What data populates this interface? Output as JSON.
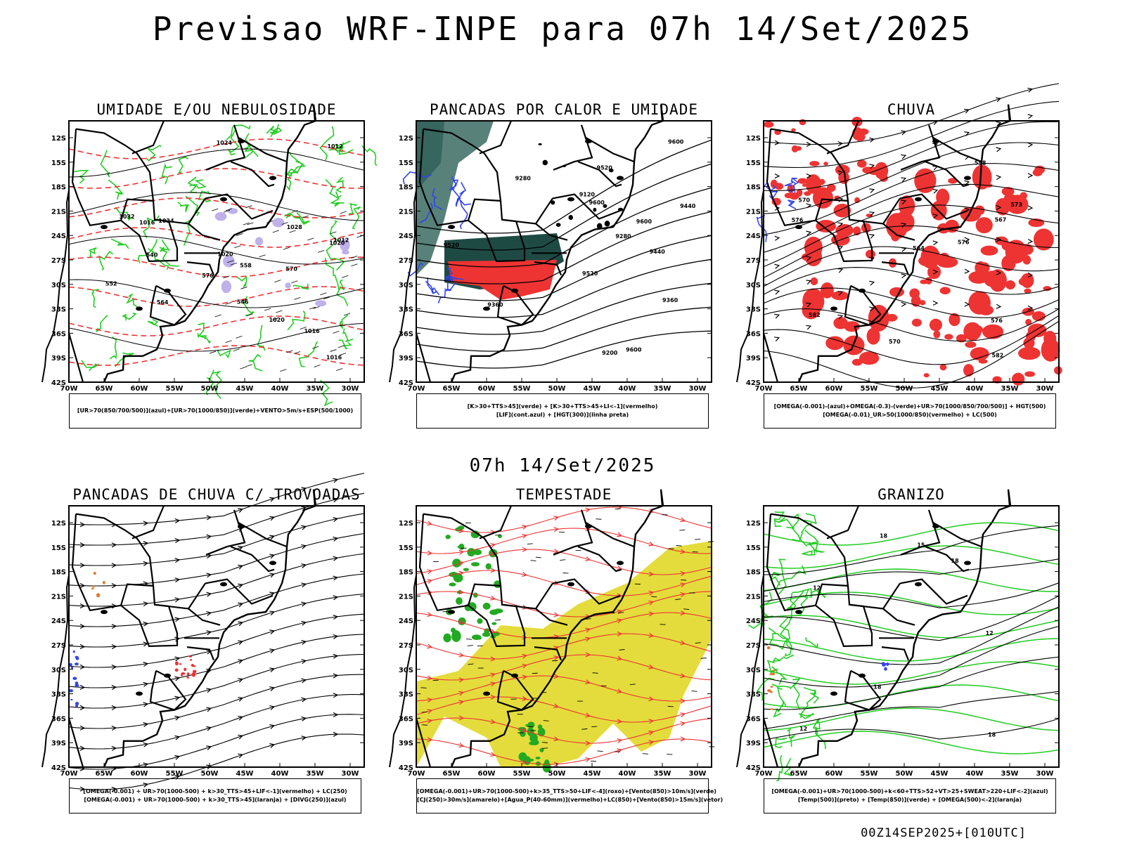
{
  "title": "Previsao WRF-INPE  para 07h 14/Set/2025",
  "mid_time": "07h 14/Set/2025",
  "footer": "00Z14SEP2025+[010UTC]",
  "axes": {
    "lat_labels": [
      "12S",
      "15S",
      "18S",
      "21S",
      "24S",
      "27S",
      "30S",
      "33S",
      "36S",
      "39S",
      "42S"
    ],
    "lon_labels": [
      "70W",
      "65W",
      "60W",
      "55W",
      "50W",
      "45W",
      "40W",
      "35W",
      "30W"
    ]
  },
  "colors": {
    "green": "#22cc22",
    "red": "#ee3333",
    "blue": "#3344ee",
    "dark_teal": "#1e4a44",
    "yellow": "#e4dc3c",
    "orange": "#e07a2a",
    "lavender": "#b8a8e8"
  },
  "panels": [
    {
      "title": "UMIDADE E/OU NEBULOSIDADE",
      "legend": [
        "[UR>70(850/700/500)](azul)+[UR>70(1000/850)](verde)+VENTO>5m/s+ESP(500/1000)"
      ],
      "labels": [
        "1012",
        "1012",
        "1016",
        "1020",
        "1020",
        "1024",
        "1024",
        "1028",
        "1032",
        "1016",
        "1020",
        "552",
        "546",
        "540",
        "576",
        "570",
        "564",
        "558",
        "1016"
      ]
    },
    {
      "title": "PANCADAS POR CALOR E UMIDADE",
      "legend": [
        "[K>30+TTS>45](verde) + [K>30+TTS>45+LI<-1](vermelho)",
        "[LIF](cont.azul) + [HGT(300)](linha preta)"
      ],
      "labels": [
        "9600",
        "9600",
        "9600",
        "9520",
        "9600",
        "9520",
        "9520",
        "9440",
        "9440",
        "9360",
        "9360",
        "9280",
        "9280",
        "9200",
        "9120"
      ]
    },
    {
      "title": "CHUVA",
      "legend": [
        "[OMEGA(-0.001)-(azul)+OMEGA(-0.3)-(verde)+UR>70(1000/850/700/500)] + HGT(500)",
        "[OMEGA(-0.01)_UR>50(1000/850)(vermelho) + LC(500)"
      ],
      "labels": [
        "582",
        "582",
        "576",
        "576",
        "570",
        "570",
        "573",
        "567",
        "564",
        "558",
        "576"
      ]
    },
    {
      "title": "PANCADAS DE CHUVA C/ TROVOADAS",
      "legend": [
        "[OMEGA(-0.001) + UR>70(1000-500) + k>30_TTS>45+LIF<-1](vermelho) + LC(250)",
        "[OMEGA(-0.001) + UR>70(1000-500) + k>30_TTS>45](laranja) + [DIVG(250)](azul)"
      ],
      "labels": []
    },
    {
      "title": "TEMPESTADE",
      "legend": [
        "[OMEGA(-0.001)+UR>70(1000-500)+k>35_TTS>50+LIF<-4](roxo)+[Vento(850)>10m/s](verde)",
        "[CJ(250)>30m/s](amarelo)+[Agua_P(40-60mm)](vermelho)+LC(850)+[Vento(850)>15m/s](vetor)"
      ],
      "labels": []
    },
    {
      "title": "GRANIZO",
      "legend": [
        "[OMEGA(-0.001)+UR>70(1000-500)+k<60+TTS>52+VT>25+SWEAT>220+LIF<-2](azul)",
        "[Temp(500)](preto) + [Temp(850)](verde) + [OMEGA(500)<-2](laranja)"
      ],
      "labels": [
        "12",
        "12",
        "18",
        "18",
        "18",
        "15",
        "12",
        "18"
      ]
    }
  ]
}
